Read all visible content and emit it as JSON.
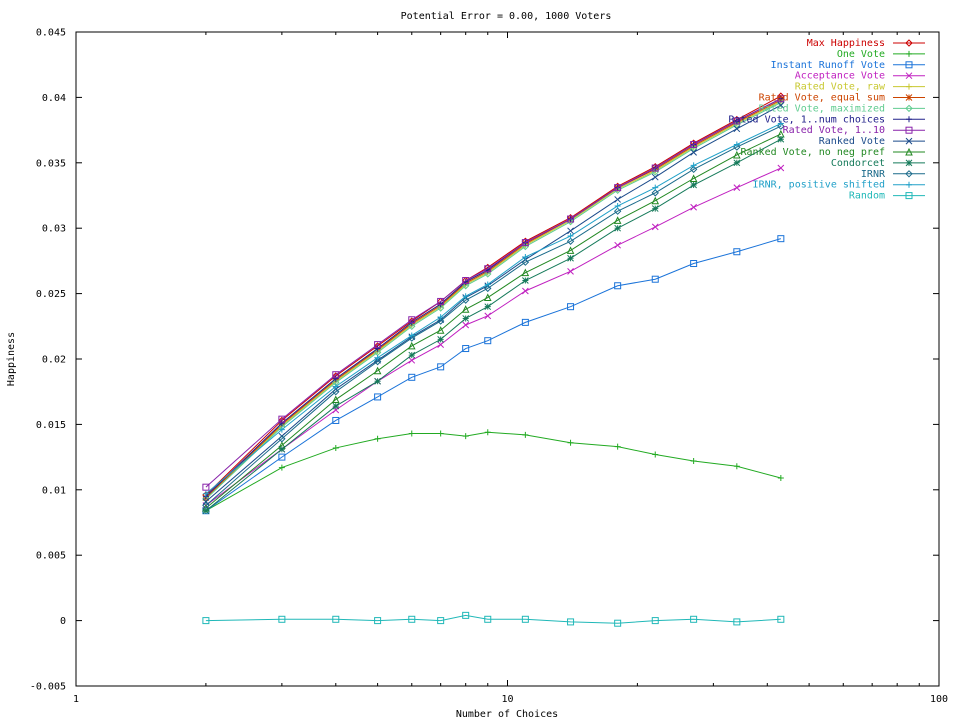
{
  "chart_data": {
    "type": "line",
    "title": "Potential Error = 0.00, 1000 Voters",
    "xlabel": "Number of Choices",
    "ylabel": "Happiness",
    "xscale": "log",
    "xlim": [
      1,
      100
    ],
    "ylim": [
      -0.005,
      0.045
    ],
    "xticks": [
      {
        "value": 1,
        "label": "1"
      },
      {
        "value": 10,
        "label": "10"
      },
      {
        "value": 100,
        "label": "100"
      }
    ],
    "yticks": [
      {
        "value": -0.005,
        "label": "-0.005"
      },
      {
        "value": 0,
        "label": "0"
      },
      {
        "value": 0.005,
        "label": "0.005"
      },
      {
        "value": 0.01,
        "label": "0.01"
      },
      {
        "value": 0.015,
        "label": "0.015"
      },
      {
        "value": 0.02,
        "label": "0.02"
      },
      {
        "value": 0.025,
        "label": "0.025"
      },
      {
        "value": 0.03,
        "label": "0.03"
      },
      {
        "value": 0.035,
        "label": "0.035"
      },
      {
        "value": 0.04,
        "label": "0.04"
      },
      {
        "value": 0.045,
        "label": "0.045"
      }
    ],
    "grid": false,
    "legend_position": "top-right",
    "x": [
      2,
      3,
      4,
      5,
      6,
      7,
      8,
      9,
      11,
      14,
      18,
      22,
      27,
      34,
      43
    ],
    "series": [
      {
        "name": "Max Happiness",
        "color": "#cc0000",
        "marker": "diamond",
        "values": [
          0.0096,
          0.0153,
          0.0187,
          0.021,
          0.0229,
          0.0244,
          0.026,
          0.027,
          0.029,
          0.0308,
          0.0332,
          0.0347,
          0.0365,
          0.0383,
          0.0401
        ]
      },
      {
        "name": "One Vote",
        "color": "#22aa22",
        "marker": "plus",
        "values": [
          0.0084,
          0.0117,
          0.0132,
          0.0139,
          0.0143,
          0.0143,
          0.0141,
          0.0144,
          0.0142,
          0.0136,
          0.0133,
          0.0127,
          0.0122,
          0.0118,
          0.0109
        ]
      },
      {
        "name": "Instant Runoff Vote",
        "color": "#1a73d9",
        "marker": "square",
        "values": [
          0.0084,
          0.0125,
          0.0153,
          0.0171,
          0.0186,
          0.0194,
          0.0208,
          0.0214,
          0.0228,
          0.024,
          0.0256,
          0.0261,
          0.0273,
          0.0282,
          0.0292
        ]
      },
      {
        "name": "Acceptance Vote",
        "color": "#c020c0",
        "marker": "x",
        "values": [
          0.0088,
          0.0131,
          0.0161,
          0.0183,
          0.0199,
          0.0211,
          0.0226,
          0.0233,
          0.0252,
          0.0267,
          0.0287,
          0.0301,
          0.0316,
          0.0331,
          0.0346
        ]
      },
      {
        "name": "Rated Vote, raw",
        "color": "#c8c830",
        "marker": "plus",
        "values": [
          0.0093,
          0.0149,
          0.0183,
          0.0206,
          0.0226,
          0.024,
          0.0257,
          0.0266,
          0.0287,
          0.0306,
          0.033,
          0.0344,
          0.0362,
          0.038,
          0.0397
        ]
      },
      {
        "name": "Rated Vote, equal sum",
        "color": "#cc4400",
        "marker": "star",
        "values": [
          0.0094,
          0.015,
          0.0184,
          0.0207,
          0.0227,
          0.0241,
          0.0258,
          0.0267,
          0.0288,
          0.0307,
          0.0331,
          0.0345,
          0.0363,
          0.0381,
          0.0398
        ]
      },
      {
        "name": "Rated Vote, maximized",
        "color": "#60cc90",
        "marker": "diamond",
        "values": [
          0.0093,
          0.0148,
          0.0182,
          0.0205,
          0.0225,
          0.0239,
          0.0256,
          0.0265,
          0.0286,
          0.0305,
          0.0329,
          0.0343,
          0.0361,
          0.0379,
          0.0396
        ]
      },
      {
        "name": "Rated Vote, 1..num choices",
        "color": "#20208a",
        "marker": "plus",
        "values": [
          0.0095,
          0.0151,
          0.0185,
          0.0208,
          0.0228,
          0.0242,
          0.0259,
          0.0268,
          0.0289,
          0.0307,
          0.0331,
          0.0346,
          0.0364,
          0.0382,
          0.0399
        ]
      },
      {
        "name": "Rated Vote, 1..10",
        "color": "#8822aa",
        "marker": "square",
        "values": [
          0.0102,
          0.0154,
          0.0188,
          0.0211,
          0.023,
          0.0244,
          0.026,
          0.0269,
          0.0289,
          0.0307,
          0.0331,
          0.0346,
          0.0364,
          0.0382,
          0.0399
        ]
      },
      {
        "name": "Ranked Vote",
        "color": "#1a4a8a",
        "marker": "x",
        "values": [
          0.0091,
          0.0141,
          0.0177,
          0.0199,
          0.0217,
          0.023,
          0.0247,
          0.0256,
          0.0276,
          0.0298,
          0.0322,
          0.0339,
          0.0358,
          0.0376,
          0.0394
        ]
      },
      {
        "name": "Ranked Vote, no neg pref",
        "color": "#228822",
        "marker": "triangle",
        "values": [
          0.0086,
          0.0134,
          0.0169,
          0.0191,
          0.021,
          0.0222,
          0.0238,
          0.0247,
          0.0266,
          0.0283,
          0.0306,
          0.0321,
          0.0338,
          0.0356,
          0.0372
        ]
      },
      {
        "name": "Condorcet",
        "color": "#157a5a",
        "marker": "star",
        "values": [
          0.0084,
          0.0131,
          0.0164,
          0.0183,
          0.0203,
          0.0215,
          0.0231,
          0.024,
          0.026,
          0.0277,
          0.03,
          0.0315,
          0.0333,
          0.035,
          0.0368
        ]
      },
      {
        "name": "IRNR",
        "color": "#1a6a8a",
        "marker": "diamond",
        "values": [
          0.0088,
          0.0139,
          0.0175,
          0.0198,
          0.0216,
          0.0229,
          0.0245,
          0.0254,
          0.0274,
          0.029,
          0.0313,
          0.0327,
          0.0345,
          0.0362,
          0.0378
        ]
      },
      {
        "name": "IRNR, positive shifted",
        "color": "#20a0c8",
        "marker": "plus",
        "values": [
          0.0097,
          0.0146,
          0.0179,
          0.0201,
          0.0218,
          0.0232,
          0.0248,
          0.0257,
          0.0278,
          0.0294,
          0.0317,
          0.0331,
          0.0348,
          0.0364,
          0.038
        ]
      },
      {
        "name": "Random",
        "color": "#20b8b8",
        "marker": "square",
        "values": [
          0.0,
          0.0001,
          0.0001,
          0.0,
          0.0001,
          0.0,
          0.0004,
          0.0001,
          0.0001,
          -0.0001,
          -0.0002,
          0.0,
          0.0001,
          -0.0001,
          0.0001
        ]
      }
    ]
  }
}
